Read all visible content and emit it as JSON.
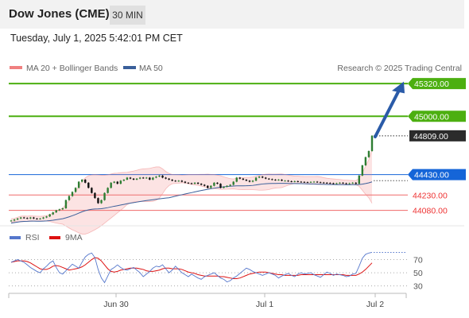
{
  "header": {
    "title": "Dow Jones (CME)",
    "timeframe": "30 MIN"
  },
  "datetime": "Tuesday, July 1, 2025 5:42:01 PM CET",
  "legend": {
    "bollinger": "MA 20 + Bollinger Bands",
    "ma50": "MA 50",
    "credit": "Research © 2025 Trading Central"
  },
  "colors": {
    "up": "#2e7d32",
    "down": "#111111",
    "bollinger": "#f08080",
    "ma50": "#3a5f9a",
    "target": "#4caf10",
    "pivot": "#1565d8",
    "support": "#f06a6a",
    "rsi": "#5577cc",
    "rsi_ma": "#dd1111"
  },
  "chart_data": [
    {
      "type": "candlestick",
      "ylim": [
        43960,
        45360
      ],
      "x": [
        "Jun 30",
        "Jul 1",
        "Jul 2"
      ],
      "series": [
        {
          "name": "MA 20 + Bollinger Bands",
          "role": "bollinger"
        },
        {
          "name": "MA 50",
          "role": "ma50"
        }
      ],
      "levels": [
        {
          "name": "target-2",
          "value": 45320,
          "label": "45320.00",
          "style": "target"
        },
        {
          "name": "target-1",
          "value": 45000,
          "label": "45000.00",
          "style": "target"
        },
        {
          "name": "last-price",
          "value": 44809,
          "label": "44809.00",
          "style": "last"
        },
        {
          "name": "pivot",
          "value": 44430,
          "label": "44430.00",
          "style": "pivot"
        },
        {
          "name": "support-1",
          "value": 44230,
          "label": "44230.00",
          "style": "support"
        },
        {
          "name": "support-2",
          "value": 44080,
          "label": "44080.00",
          "style": "support"
        }
      ],
      "closes": [
        43980,
        43990,
        44000,
        44010,
        44005,
        44000,
        44010,
        44000,
        43995,
        44000,
        44010,
        44020,
        44040,
        44060,
        44080,
        44090,
        44100,
        44180,
        44220,
        44260,
        44300,
        44360,
        44380,
        44350,
        44300,
        44250,
        44200,
        44150,
        44180,
        44250,
        44300,
        44350,
        44360,
        44340,
        44370,
        44380,
        44400,
        44390,
        44380,
        44390,
        44400,
        44395,
        44400,
        44380,
        44400,
        44410,
        44420,
        44400,
        44390,
        44380,
        44370,
        44365,
        44370,
        44360,
        44350,
        44345,
        44340,
        44350,
        44340,
        44330,
        44320,
        44300,
        44320,
        44350,
        44340,
        44300,
        44310,
        44320,
        44330,
        44360,
        44400,
        44390,
        44380,
        44370,
        44360,
        44370,
        44400,
        44410,
        44400,
        44390,
        44385,
        44380,
        44375,
        44380,
        44370,
        44370,
        44365,
        44360,
        44365,
        44360,
        44358,
        44356,
        44355,
        44358,
        44360,
        44355,
        44352,
        44350,
        44348,
        44345,
        44340,
        44345,
        44350,
        44345,
        44340,
        44345,
        44350,
        44340,
        44420,
        44520,
        44600,
        44660,
        44810
      ]
    },
    {
      "type": "line",
      "ylim": [
        15,
        90
      ],
      "yticks": [
        70,
        50,
        30
      ],
      "series": [
        {
          "name": "RSI",
          "values": [
            66,
            68,
            70,
            68,
            66,
            62,
            58,
            55,
            52,
            50,
            56,
            60,
            65,
            68,
            58,
            50,
            48,
            53,
            58,
            63,
            60,
            57,
            66,
            74,
            78,
            80,
            73,
            55,
            42,
            35,
            45,
            55,
            58,
            62,
            58,
            55,
            54,
            56,
            58,
            54,
            50,
            44,
            48,
            52,
            57,
            60,
            59,
            62,
            56,
            50,
            54,
            60,
            55,
            50,
            47,
            44,
            48,
            45,
            42,
            40,
            44,
            46,
            48,
            50,
            46,
            42,
            40,
            36,
            38,
            42,
            45,
            49,
            53,
            57,
            55,
            52,
            50,
            48,
            46,
            48,
            50,
            48,
            46,
            42,
            45,
            47,
            49,
            46,
            44,
            48,
            50,
            48,
            49,
            50,
            47,
            45,
            43,
            47,
            51,
            49,
            46,
            48,
            47,
            46,
            44,
            45,
            48,
            49,
            60,
            72,
            78,
            80,
            81
          ]
        },
        {
          "name": "9MA",
          "values": [
            66,
            67,
            68,
            68,
            68,
            67,
            65,
            62,
            59,
            56,
            55,
            55,
            57,
            60,
            61,
            60,
            58,
            56,
            54,
            55,
            56,
            57,
            59,
            62,
            66,
            70,
            73,
            72,
            68,
            62,
            56,
            52,
            51,
            52,
            54,
            55,
            56,
            57,
            57,
            57,
            56,
            55,
            53,
            52,
            52,
            53,
            54,
            56,
            57,
            57,
            56,
            56,
            56,
            55,
            53,
            51,
            50,
            49,
            47,
            46,
            45,
            45,
            45,
            45,
            45,
            44,
            44,
            43,
            42,
            41,
            41,
            42,
            44,
            46,
            48,
            49,
            50,
            51,
            51,
            51,
            50,
            49,
            48,
            47,
            47,
            46,
            46,
            46,
            46,
            46,
            47,
            47,
            47,
            47,
            47,
            47,
            47,
            47,
            47,
            47,
            47,
            47,
            47,
            47,
            46,
            46,
            46,
            46,
            48,
            51,
            55,
            60,
            65
          ]
        }
      ]
    }
  ]
}
